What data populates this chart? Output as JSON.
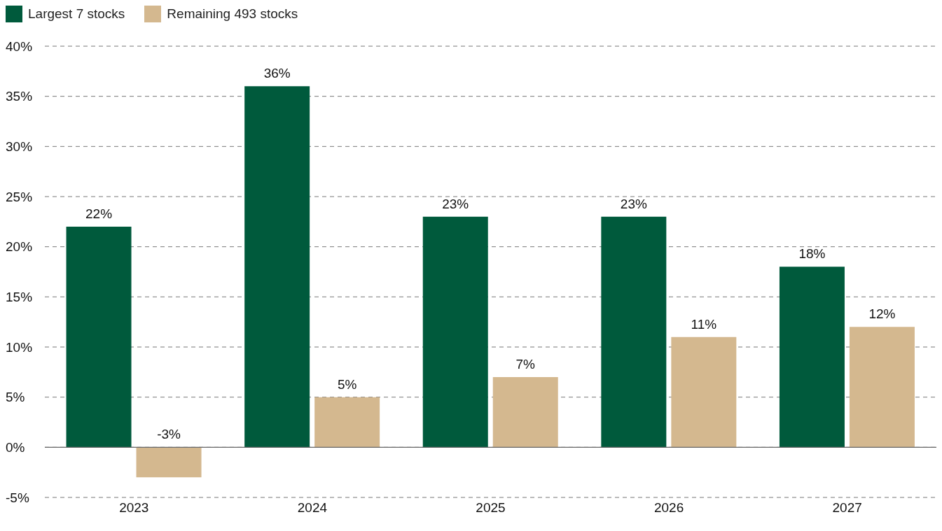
{
  "chart_data": {
    "type": "bar",
    "categories": [
      "2023",
      "2024",
      "2025",
      "2026",
      "2027"
    ],
    "series": [
      {
        "name": "Largest 7 stocks",
        "color": "#005a3c",
        "values": [
          22,
          36,
          23,
          23,
          18
        ],
        "value_labels": [
          "22%",
          "36%",
          "23%",
          "23%",
          "18%"
        ]
      },
      {
        "name": "Remaining 493 stocks",
        "color": "#d4b88f",
        "values": [
          -3,
          5,
          7,
          11,
          12
        ],
        "value_labels": [
          "-3%",
          "5%",
          "7%",
          "11%",
          "12%"
        ]
      }
    ],
    "ylim": [
      -5,
      40
    ],
    "yticks": [
      {
        "value": -5,
        "label": "-5%"
      },
      {
        "value": 0,
        "label": "0%"
      },
      {
        "value": 5,
        "label": "5%"
      },
      {
        "value": 10,
        "label": "10%"
      },
      {
        "value": 15,
        "label": "15%"
      },
      {
        "value": 20,
        "label": "20%"
      },
      {
        "value": 25,
        "label": "25%"
      },
      {
        "value": 30,
        "label": "30%"
      },
      {
        "value": 35,
        "label": "35%"
      },
      {
        "value": 40,
        "label": "40%"
      }
    ],
    "grid": "y",
    "legend": "top left"
  }
}
